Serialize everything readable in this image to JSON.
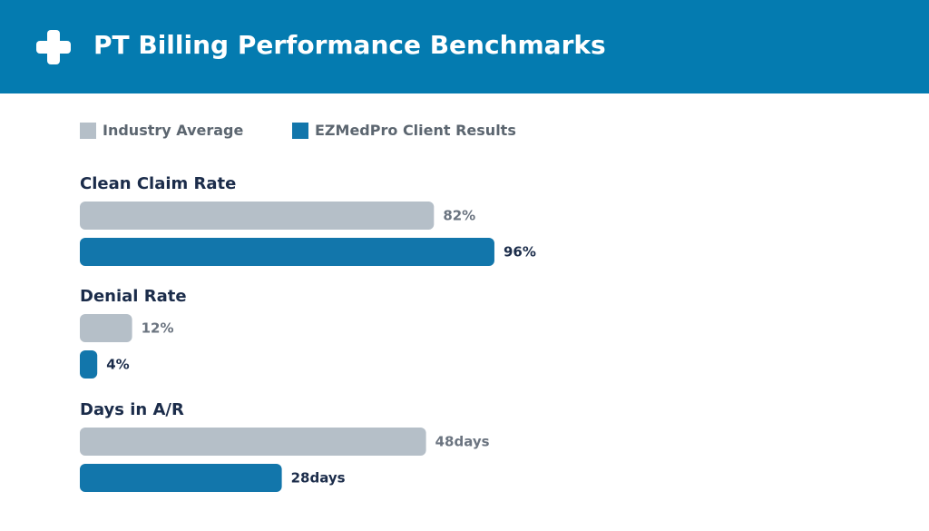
{
  "header": {
    "title": "PT Billing Performance Benchmarks",
    "icon": "medical-cross-icon"
  },
  "colors": {
    "header_bg": "#047bb0",
    "industry": "#b5bfc8",
    "client": "#1276ab",
    "industry_label": "#6b7480",
    "client_label": "#1b2c4a"
  },
  "chart_data": {
    "type": "bar",
    "orientation": "horizontal",
    "legend": {
      "position": "top-left",
      "entries": [
        "Industry Average",
        "EZMedPro Client Results"
      ]
    },
    "categories": [
      "Clean Claim Rate",
      "Denial Rate",
      "Days in A/R"
    ],
    "series": [
      {
        "name": "Industry Average",
        "values": [
          82,
          12,
          48
        ],
        "labels": [
          "82%",
          "12%",
          "48days"
        ]
      },
      {
        "name": "EZMedPro Client Results",
        "values": [
          96,
          4,
          28
        ],
        "labels": [
          "96%",
          "4%",
          "28days"
        ]
      }
    ],
    "grid": false
  }
}
